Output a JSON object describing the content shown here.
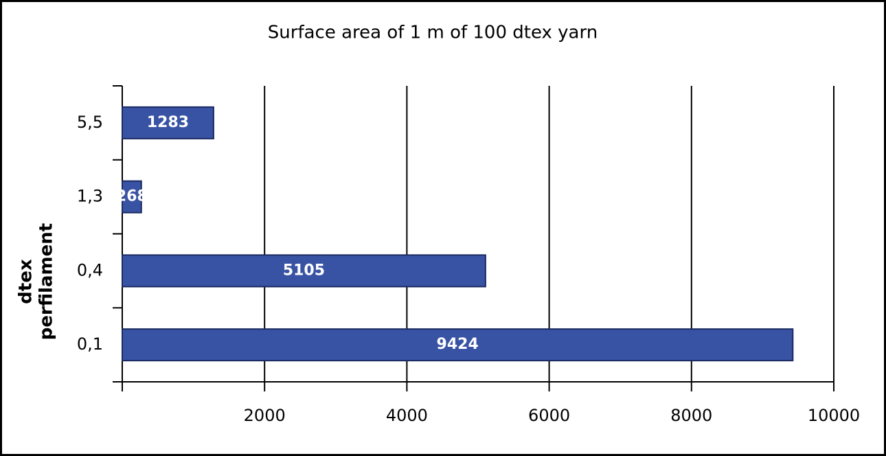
{
  "chart_data": {
    "type": "hbar",
    "title": "Surface area of 1 m of 100 dtex yarn",
    "y_label": [
      "dtex",
      "perfilament"
    ],
    "categories": [
      "5,5",
      "1,3",
      "0,4",
      "0,1"
    ],
    "values": [
      1283,
      268,
      5105,
      9424
    ],
    "color": "#3953a4",
    "xlim": [
      0,
      10000
    ],
    "xticks": [
      2000,
      4000,
      6000,
      8000,
      10000
    ],
    "grid": true
  }
}
